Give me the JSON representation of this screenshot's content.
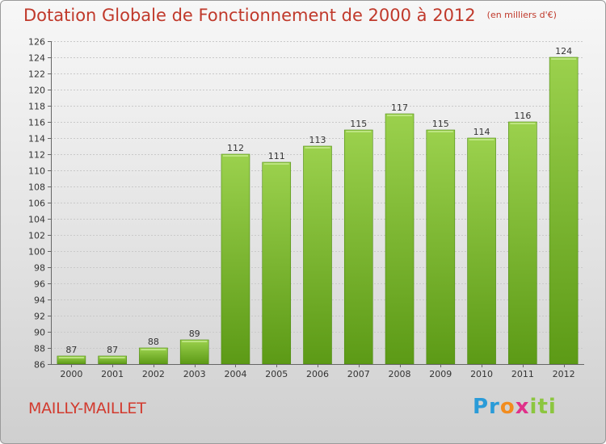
{
  "header": {
    "title": "Dotation Globale de Fonctionnement de 2000 à 2012",
    "unit_note": "(en milliers d'€)"
  },
  "footer": {
    "commune": "MAILLY-MAILLET",
    "brand_parts": [
      "Pr",
      "o",
      "x",
      "iti"
    ]
  },
  "colors": {
    "title": "#c0392b",
    "bar_top": "#9bd14d",
    "bar_bottom": "#5c9a16",
    "brand_blue": "#2a9bd8",
    "brand_orange": "#f28c1e",
    "brand_green": "#8cc63f",
    "brand_pink": "#e0318a"
  },
  "chart_data": {
    "type": "bar",
    "title": "Dotation Globale de Fonctionnement de 2000 à 2012",
    "subtitle": "(en milliers d'€)",
    "categories": [
      "2000",
      "2001",
      "2002",
      "2003",
      "2004",
      "2005",
      "2006",
      "2007",
      "2008",
      "2009",
      "2010",
      "2011",
      "2012"
    ],
    "values": [
      87,
      87,
      88,
      89,
      112,
      111,
      113,
      115,
      117,
      115,
      114,
      116,
      124
    ],
    "xlabel": "",
    "ylabel": "",
    "ylim": [
      86,
      126
    ],
    "yticks": [
      86,
      88,
      90,
      92,
      94,
      96,
      98,
      100,
      102,
      104,
      106,
      108,
      110,
      112,
      114,
      116,
      118,
      120,
      122,
      124,
      126
    ],
    "grid": true,
    "legend": "none"
  }
}
